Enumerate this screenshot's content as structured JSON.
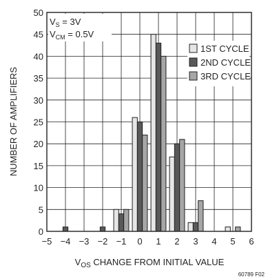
{
  "chart_data": {
    "type": "bar",
    "title": "",
    "xlabel_main": "V",
    "xlabel_sub": "OS",
    "xlabel_rest": " CHANGE FROM INITIAL VALUE",
    "ylabel": "NUMBER OF AMPLIFIERS",
    "xlim": [
      -5,
      6
    ],
    "ylim": [
      0,
      50
    ],
    "x_ticks": [
      -5,
      -4,
      -3,
      -2,
      -1,
      0,
      1,
      2,
      3,
      4,
      5,
      6
    ],
    "x_tick_labels": [
      "−5",
      "−4",
      "−3",
      "−2",
      "−1",
      "0",
      "1",
      "2",
      "3",
      "4",
      "5",
      "6"
    ],
    "y_ticks": [
      0,
      5,
      10,
      15,
      20,
      25,
      30,
      35,
      40,
      45,
      50
    ],
    "y_tick_labels": [
      "0",
      "5",
      "10",
      "15",
      "20",
      "25",
      "30",
      "35",
      "40",
      "45",
      "50"
    ],
    "grid": true,
    "legend_position": "top-right",
    "categories": [
      -4,
      -2,
      -1,
      0,
      1,
      2,
      3,
      5
    ],
    "series": [
      {
        "name": "1ST CYCLE",
        "color": "#e6e6e6",
        "values": [
          0,
          0,
          5,
          26,
          45,
          17,
          2,
          1
        ]
      },
      {
        "name": "2ND CYCLE",
        "color": "#595959",
        "values": [
          1,
          1,
          4,
          25,
          43,
          20,
          2,
          0
        ]
      },
      {
        "name": "3RD CYCLE",
        "color": "#a6a6a6",
        "values": [
          0,
          0,
          5,
          22,
          40,
          21,
          7,
          1
        ]
      }
    ],
    "annotations": [
      {
        "main": "V",
        "sub": "S",
        "rest": " = 3V"
      },
      {
        "main": "V",
        "sub": "CM",
        "rest": " = 0.5V"
      }
    ],
    "figure_code": "60789 F02"
  }
}
